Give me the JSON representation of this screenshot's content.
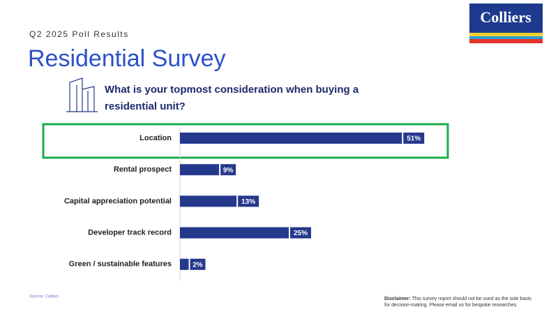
{
  "subtitle": "Q2 2025 Poll Results",
  "title": "Residential Survey",
  "logo": "Colliers",
  "source": "Source: Colliers",
  "disclaimer": {
    "label": "Disclaimer:",
    "text": "This survey report should not be used as the sole basis for decision-making. Please email us for bespoke researches."
  },
  "chart_data": {
    "type": "hbar",
    "title": "What is your topmost consideration when buying a residential unit?",
    "categories": [
      "Location",
      "Rental prospect",
      "Capital appreciation potential",
      "Developer track record",
      "Green / sustainable features"
    ],
    "values": [
      51,
      9,
      13,
      25,
      2
    ],
    "value_labels": [
      "51%",
      "9%",
      "13%",
      "25%",
      "2%"
    ],
    "color": "#25398c"
  }
}
